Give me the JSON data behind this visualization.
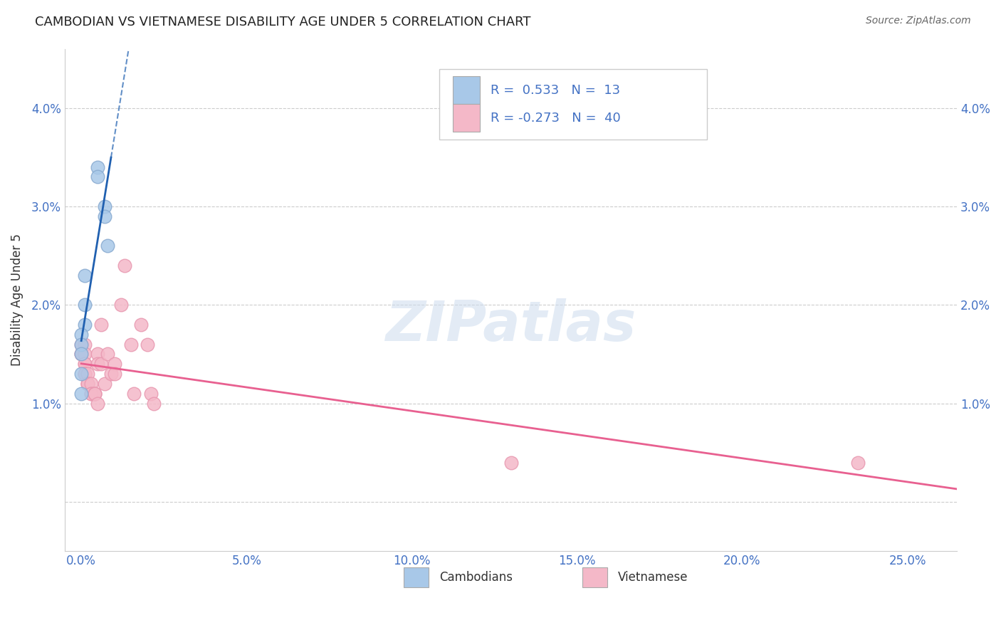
{
  "title": "CAMBODIAN VS VIETNAMESE DISABILITY AGE UNDER 5 CORRELATION CHART",
  "source": "Source: ZipAtlas.com",
  "ylabel": "Disability Age Under 5",
  "x_ticks": [
    0.0,
    0.05,
    0.1,
    0.15,
    0.2,
    0.25
  ],
  "x_tick_labels": [
    "0.0%",
    "5.0%",
    "10.0%",
    "15.0%",
    "20.0%",
    "25.0%"
  ],
  "y_ticks": [
    0.0,
    0.01,
    0.02,
    0.03,
    0.04
  ],
  "y_tick_labels_left": [
    "",
    "1.0%",
    "2.0%",
    "3.0%",
    "4.0%"
  ],
  "y_tick_labels_right": [
    "",
    "1.0%",
    "2.0%",
    "3.0%",
    "4.0%"
  ],
  "xlim": [
    -0.005,
    0.265
  ],
  "ylim": [
    -0.005,
    0.046
  ],
  "cambodian_R": 0.533,
  "cambodian_N": 13,
  "vietnamese_R": -0.273,
  "vietnamese_N": 40,
  "cambodian_color": "#a8c8e8",
  "vietnamese_color": "#f4b8c8",
  "cambodian_edge_color": "#88aad0",
  "vietnamese_edge_color": "#e898b0",
  "cambodian_line_color": "#2060b0",
  "vietnamese_line_color": "#e86090",
  "cambodian_legend_color": "#a8c8e8",
  "vietnamese_legend_color": "#f4b8c8",
  "cambodian_points": [
    [
      0.005,
      0.034
    ],
    [
      0.005,
      0.033
    ],
    [
      0.007,
      0.03
    ],
    [
      0.007,
      0.029
    ],
    [
      0.008,
      0.026
    ],
    [
      0.001,
      0.023
    ],
    [
      0.001,
      0.02
    ],
    [
      0.001,
      0.018
    ],
    [
      0.0,
      0.017
    ],
    [
      0.0,
      0.016
    ],
    [
      0.0,
      0.015
    ],
    [
      0.0,
      0.013
    ],
    [
      0.0,
      0.011
    ]
  ],
  "vietnamese_points": [
    [
      0.0,
      0.016
    ],
    [
      0.0,
      0.015
    ],
    [
      0.0,
      0.015
    ],
    [
      0.001,
      0.016
    ],
    [
      0.001,
      0.015
    ],
    [
      0.001,
      0.014
    ],
    [
      0.001,
      0.014
    ],
    [
      0.001,
      0.013
    ],
    [
      0.001,
      0.013
    ],
    [
      0.001,
      0.013
    ],
    [
      0.002,
      0.013
    ],
    [
      0.002,
      0.012
    ],
    [
      0.002,
      0.012
    ],
    [
      0.002,
      0.012
    ],
    [
      0.003,
      0.012
    ],
    [
      0.003,
      0.011
    ],
    [
      0.003,
      0.011
    ],
    [
      0.004,
      0.011
    ],
    [
      0.004,
      0.011
    ],
    [
      0.004,
      0.011
    ],
    [
      0.005,
      0.015
    ],
    [
      0.005,
      0.014
    ],
    [
      0.005,
      0.01
    ],
    [
      0.006,
      0.018
    ],
    [
      0.006,
      0.014
    ],
    [
      0.007,
      0.012
    ],
    [
      0.008,
      0.015
    ],
    [
      0.009,
      0.013
    ],
    [
      0.01,
      0.014
    ],
    [
      0.01,
      0.013
    ],
    [
      0.012,
      0.02
    ],
    [
      0.013,
      0.024
    ],
    [
      0.015,
      0.016
    ],
    [
      0.016,
      0.011
    ],
    [
      0.018,
      0.018
    ],
    [
      0.02,
      0.016
    ],
    [
      0.021,
      0.011
    ],
    [
      0.022,
      0.01
    ],
    [
      0.13,
      0.004
    ],
    [
      0.235,
      0.004
    ]
  ],
  "watermark": "ZIPatlas",
  "background_color": "#ffffff",
  "grid_color": "#cccccc"
}
